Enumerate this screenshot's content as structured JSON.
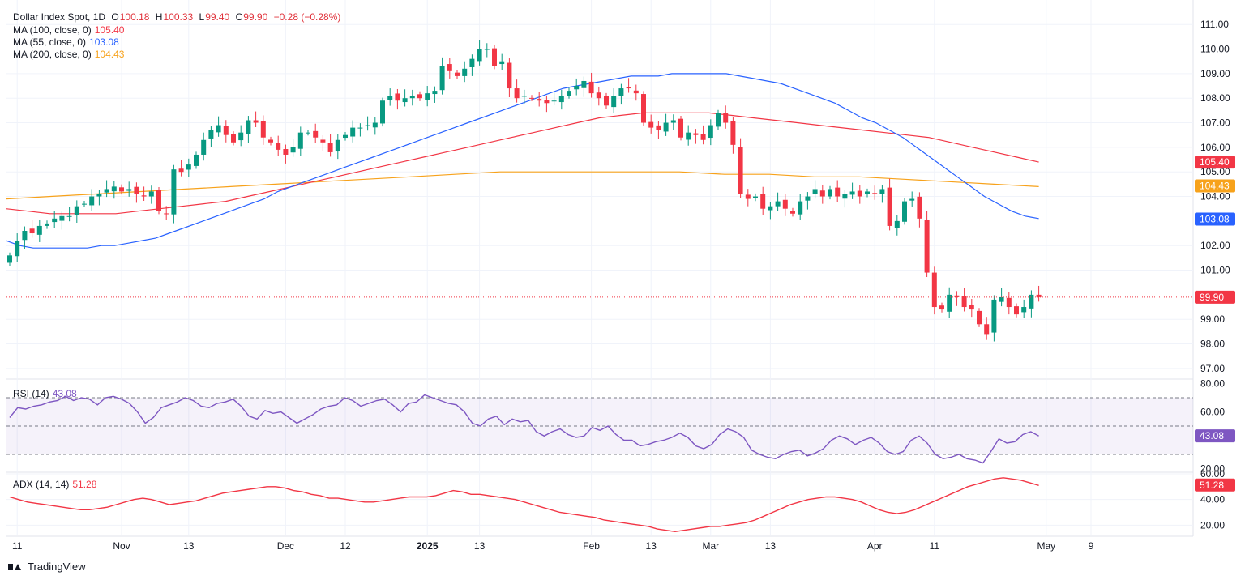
{
  "header": {
    "symbol": "Dollar Index Spot, 1D",
    "open_label": "O",
    "open": "100.18",
    "high_label": "H",
    "high": "100.33",
    "low_label": "L",
    "low": "99.40",
    "close_label": "C",
    "close": "99.90",
    "change": "−0.28 (−0.28%)"
  },
  "indicators": {
    "ma100_label": "MA (100, close, 0)",
    "ma100_value": "105.40",
    "ma55_label": "MA (55, close, 0)",
    "ma55_value": "103.08",
    "ma200_label": "MA (200, close, 0)",
    "ma200_value": "104.43",
    "rsi_label": "RSI (14)",
    "rsi_value": "43.08",
    "adx_label": "ADX (14, 14)",
    "adx_value": "51.28"
  },
  "branding": {
    "logo_text": "TradingView"
  },
  "colors": {
    "up": "#089981",
    "down": "#f23645",
    "ma55": "#2962ff",
    "ma100": "#f23645",
    "ma200": "#f7a21b",
    "rsi": "#7e57c2",
    "adx": "#f23645",
    "grid": "#f0f3fa",
    "text": "#131722"
  },
  "chart_data": {
    "type": "candlestick",
    "title": "Dollar Index Spot, 1D",
    "price_axis": {
      "ylim": [
        96.6,
        111.6
      ],
      "ticks": [
        "111.00",
        "110.00",
        "109.00",
        "108.00",
        "107.00",
        "106.00",
        "105.00",
        "104.00",
        "102.00",
        "101.00",
        "99.00",
        "98.00",
        "97.00"
      ]
    },
    "x_axis": {
      "labels": [
        {
          "text": "11",
          "index": 1
        },
        {
          "text": "Nov",
          "index": 15
        },
        {
          "text": "13",
          "index": 24
        },
        {
          "text": "Dec",
          "index": 37
        },
        {
          "text": "12",
          "index": 45
        },
        {
          "text": "2025",
          "index": 56,
          "bold": true
        },
        {
          "text": "13",
          "index": 63
        },
        {
          "text": "Feb",
          "index": 78
        },
        {
          "text": "13",
          "index": 86
        },
        {
          "text": "Mar",
          "index": 94
        },
        {
          "text": "13",
          "index": 102
        },
        {
          "text": "Apr",
          "index": 116
        },
        {
          "text": "11",
          "index": 124
        },
        {
          "text": "May",
          "index": 139
        },
        {
          "text": "9",
          "index": 145
        }
      ]
    },
    "candles_close": [
      101.6,
      102.2,
      102.6,
      102.5,
      102.8,
      102.9,
      103.1,
      103.2,
      103.2,
      103.6,
      103.7,
      104.0,
      104.1,
      104.3,
      104.4,
      104.2,
      104.3,
      104.1,
      104.0,
      104.2,
      103.4,
      103.3,
      105.1,
      105.0,
      105.3,
      105.7,
      106.3,
      106.7,
      106.9,
      106.5,
      106.2,
      106.6,
      107.1,
      107.0,
      106.4,
      106.2,
      105.9,
      105.7,
      106.0,
      106.6,
      106.6,
      106.4,
      106.2,
      105.8,
      106.3,
      106.5,
      106.8,
      106.8,
      106.9,
      107.0,
      107.9,
      108.1,
      107.9,
      108.0,
      108.1,
      108.0,
      108.2,
      108.3,
      109.3,
      109.1,
      108.9,
      109.2,
      109.6,
      110.0,
      110.0,
      109.3,
      109.5,
      108.4,
      108.0,
      108.1,
      108.0,
      107.9,
      107.8,
      107.9,
      108.1,
      108.3,
      108.5,
      108.7,
      108.2,
      108.0,
      107.7,
      108.1,
      108.4,
      108.4,
      108.2,
      107.0,
      106.8,
      106.7,
      107.0,
      107.1,
      106.4,
      106.6,
      106.5,
      106.3,
      106.9,
      107.4,
      107.0,
      106.1,
      104.1,
      103.9,
      104.0,
      103.5,
      103.6,
      103.8,
      103.5,
      103.3,
      103.8,
      104.0,
      104.3,
      104.0,
      104.3,
      104.0,
      104.1,
      104.2,
      104.0,
      104.2,
      104.1,
      104.3,
      102.8,
      103.0,
      103.8,
      103.9,
      103.1,
      100.9,
      99.5,
      99.4,
      100.0,
      99.9,
      99.5,
      99.4,
      98.8,
      98.4,
      99.8,
      99.9,
      99.5,
      99.2,
      99.5,
      100.0,
      99.9
    ],
    "ma55": [
      102.2,
      102.0,
      101.9,
      101.9,
      101.9,
      101.9,
      101.9,
      102.0,
      102.0,
      102.1,
      102.2,
      102.3,
      102.5,
      102.7,
      102.9,
      103.1,
      103.3,
      103.5,
      103.7,
      103.9,
      104.2,
      104.4,
      104.6,
      104.8,
      105.0,
      105.2,
      105.4,
      105.6,
      105.8,
      106.0,
      106.2,
      106.4,
      106.6,
      106.8,
      107.0,
      107.2,
      107.4,
      107.6,
      107.8,
      108.0,
      108.2,
      108.4,
      108.5,
      108.6,
      108.7,
      108.8,
      108.9,
      108.9,
      108.9,
      109.0,
      109.0,
      109.0,
      109.0,
      109.0,
      108.9,
      108.8,
      108.7,
      108.6,
      108.4,
      108.2,
      108.0,
      107.8,
      107.5,
      107.2,
      107.0,
      106.7,
      106.4,
      106.0,
      105.6,
      105.2,
      104.8,
      104.4,
      104.0,
      103.7,
      103.4,
      103.2,
      103.1
    ],
    "ma100": [
      103.5,
      103.4,
      103.3,
      103.3,
      103.3,
      103.3,
      103.4,
      103.5,
      103.6,
      103.7,
      103.8,
      104.0,
      104.2,
      104.4,
      104.6,
      104.8,
      105.0,
      105.2,
      105.4,
      105.6,
      105.8,
      106.0,
      106.2,
      106.4,
      106.6,
      106.8,
      107.0,
      107.2,
      107.3,
      107.4,
      107.4,
      107.4,
      107.4,
      107.3,
      107.2,
      107.1,
      107.0,
      106.9,
      106.8,
      106.7,
      106.6,
      106.5,
      106.4,
      106.2,
      106.0,
      105.8,
      105.6,
      105.4
    ],
    "ma200": [
      103.9,
      104.0,
      104.1,
      104.2,
      104.3,
      104.4,
      104.5,
      104.6,
      104.7,
      104.8,
      104.9,
      105.0,
      105.0,
      105.0,
      105.0,
      105.0,
      104.9,
      104.9,
      104.8,
      104.8,
      104.7,
      104.6,
      104.5,
      104.4
    ],
    "rsi": {
      "levels": [
        70,
        50,
        30
      ],
      "range": [
        18,
        82
      ],
      "ticks": [
        "80.00",
        "60.00",
        "20.00"
      ],
      "values": [
        56,
        63,
        62,
        64,
        65,
        67,
        68,
        71,
        68,
        70,
        69,
        65,
        70,
        71,
        69,
        66,
        60,
        52,
        56,
        63,
        65,
        67,
        70,
        68,
        64,
        63,
        66,
        67,
        69,
        64,
        57,
        55,
        61,
        59,
        60,
        56,
        52,
        55,
        58,
        62,
        64,
        65,
        70,
        68,
        64,
        66,
        68,
        69,
        65,
        60,
        66,
        67,
        72,
        70,
        68,
        66,
        65,
        60,
        52,
        50,
        55,
        57,
        51,
        55,
        53,
        54,
        46,
        43,
        46,
        48,
        44,
        42,
        43,
        49,
        47,
        50,
        44,
        40,
        40,
        36,
        37,
        39,
        40,
        42,
        45,
        42,
        36,
        34,
        37,
        44,
        48,
        46,
        42,
        33,
        30,
        28,
        27,
        30,
        32,
        33,
        29,
        31,
        34,
        40,
        43,
        41,
        37,
        40,
        42,
        38,
        32,
        30,
        32,
        40,
        43,
        38,
        30,
        27,
        28,
        30,
        27,
        26,
        24,
        32,
        41,
        38,
        39,
        44,
        46,
        43
      ]
    },
    "adx": {
      "range": [
        12,
        60
      ],
      "ticks": [
        "60.00",
        "40.00",
        "20.00"
      ],
      "values": [
        42,
        40,
        38,
        37,
        36,
        35,
        34,
        33,
        32,
        32,
        33,
        34,
        36,
        38,
        40,
        41,
        40,
        38,
        36,
        37,
        38,
        39,
        41,
        43,
        45,
        46,
        47,
        48,
        49,
        50,
        50,
        49,
        47,
        46,
        44,
        43,
        41,
        41,
        40,
        39,
        38,
        38,
        39,
        40,
        41,
        42,
        42,
        42,
        43,
        45,
        47,
        46,
        44,
        44,
        43,
        42,
        41,
        40,
        38,
        36,
        34,
        32,
        30,
        29,
        28,
        27,
        26,
        24,
        23,
        22,
        21,
        20,
        19,
        17,
        16,
        15,
        16,
        17,
        18,
        19,
        19,
        20,
        21,
        22,
        24,
        27,
        30,
        33,
        36,
        38,
        40,
        41,
        42,
        42,
        41,
        40,
        38,
        35,
        32,
        30,
        29,
        30,
        32,
        35,
        38,
        41,
        44,
        47,
        50,
        52,
        54,
        56,
        57,
        56,
        55,
        53,
        51
      ]
    }
  }
}
